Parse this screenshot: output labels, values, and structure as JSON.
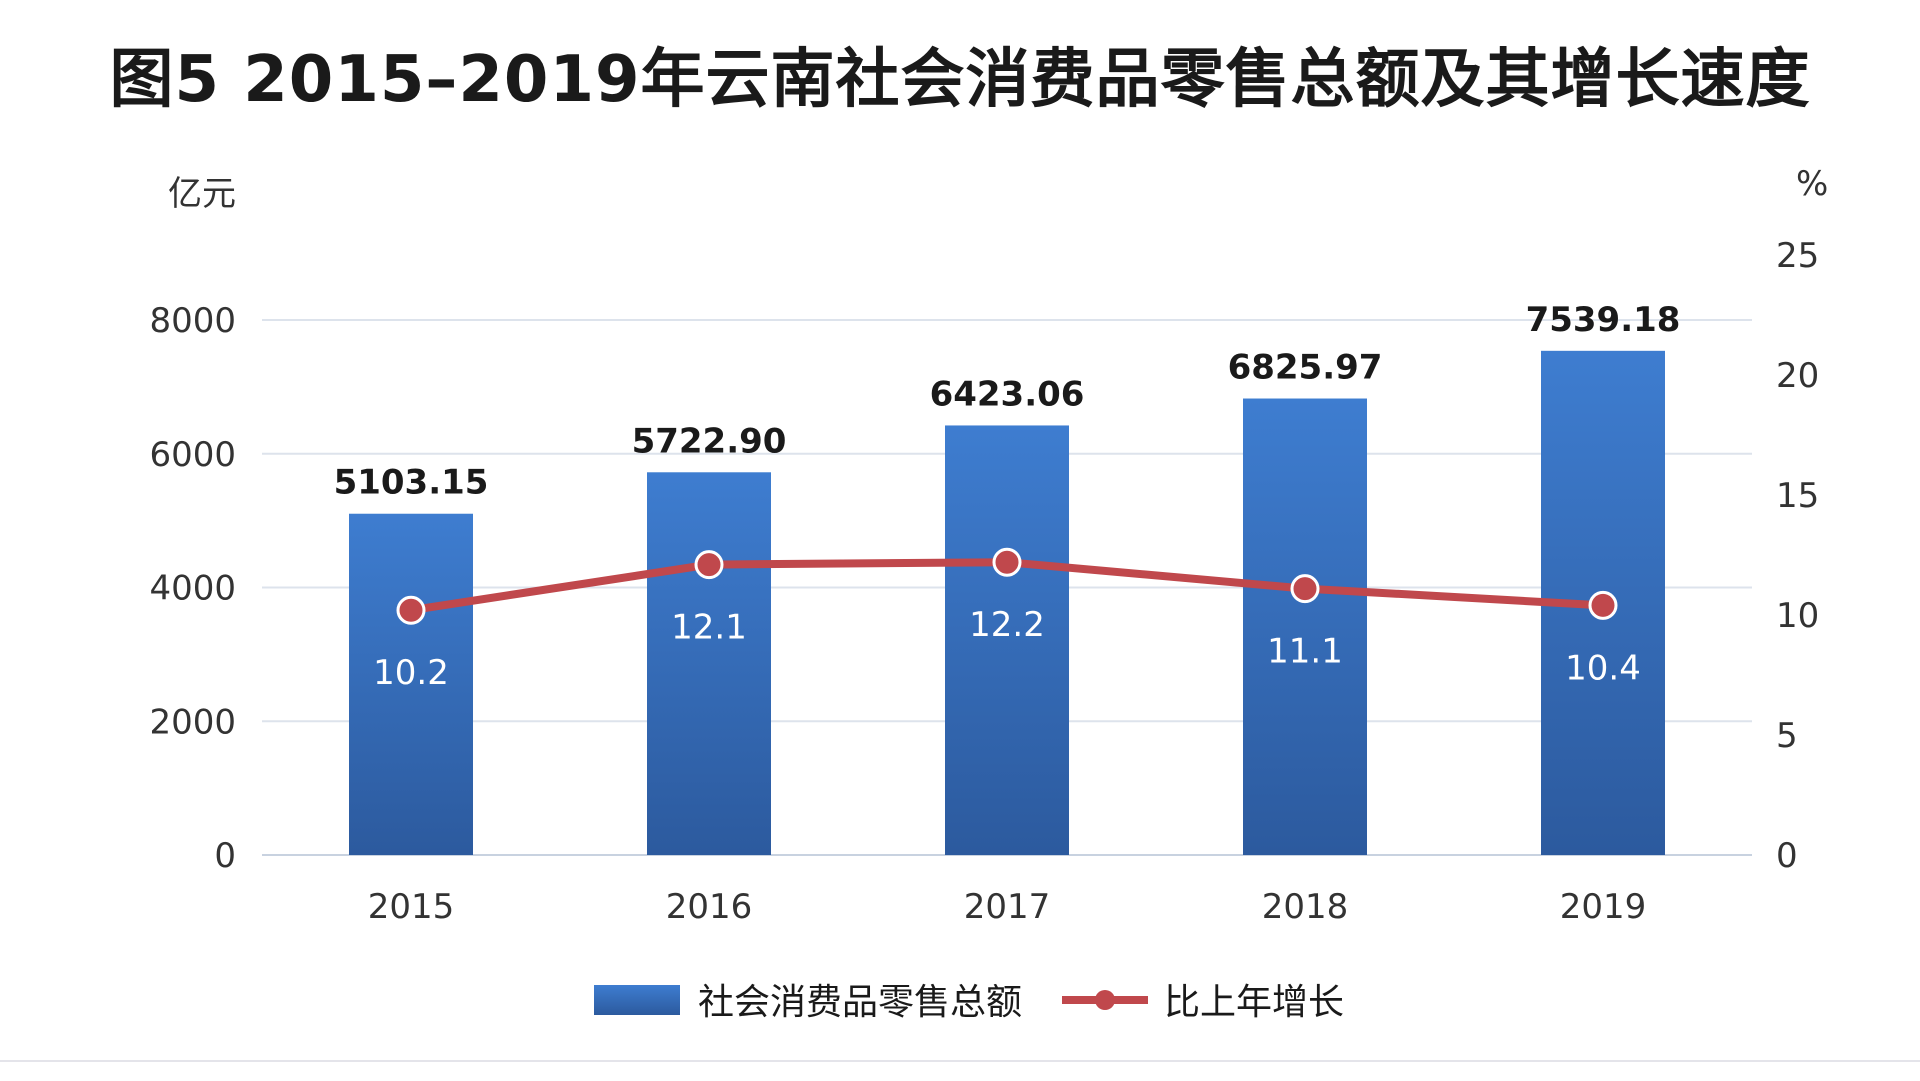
{
  "chart_data": {
    "type": "bar",
    "title": "图5  2015–2019年云南社会消费品零售总额及其增长速度",
    "categories": [
      "2015",
      "2016",
      "2017",
      "2018",
      "2019"
    ],
    "series": [
      {
        "name": "社会消费品零售总额",
        "type": "bar",
        "axis": "left",
        "values": [
          5103.15,
          5722.9,
          6423.06,
          6825.97,
          7539.18
        ],
        "value_labels": [
          "5103.15",
          "5722.90",
          "6423.06",
          "6825.97",
          "7539.18"
        ],
        "color": "#3a74c4"
      },
      {
        "name": "比上年增长",
        "type": "line",
        "axis": "right",
        "values": [
          10.2,
          12.1,
          12.2,
          11.1,
          10.4
        ],
        "value_labels": [
          "10.2",
          "12.1",
          "12.2",
          "11.1",
          "10.4"
        ],
        "color": "#c0484c"
      }
    ],
    "y_left": {
      "unit": "亿元",
      "ylim": [
        0,
        8000
      ],
      "ticks": [
        "0",
        "2000",
        "4000",
        "6000",
        "8000"
      ]
    },
    "y_right": {
      "unit": "%",
      "ylim": [
        0,
        25
      ],
      "ticks": [
        "0",
        "5",
        "10",
        "15",
        "20",
        "25"
      ]
    },
    "grid": true,
    "legend_position": "bottom"
  }
}
